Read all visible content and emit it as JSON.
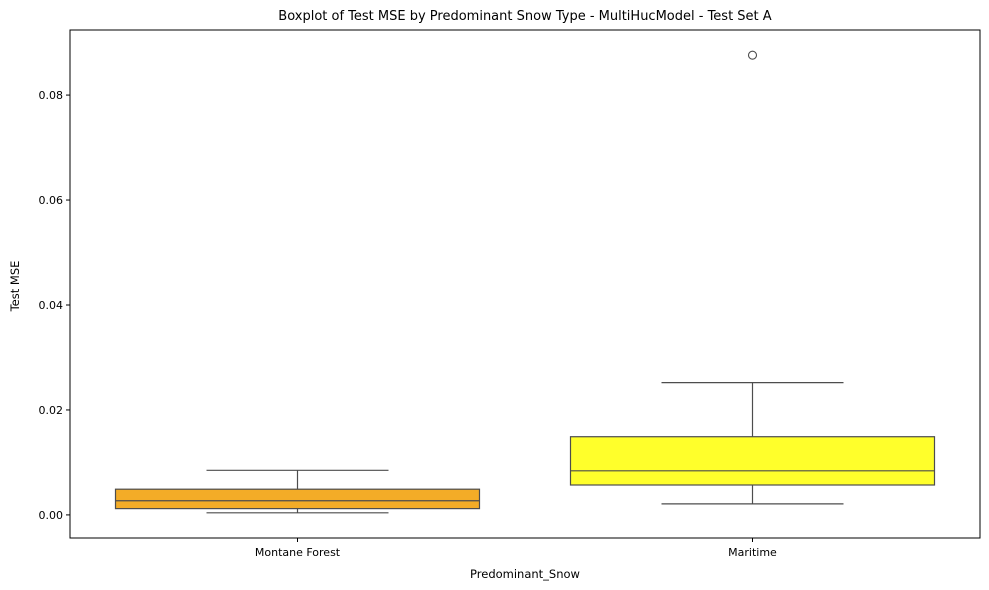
{
  "chart_data": {
    "type": "boxplot",
    "title": "Boxplot of Test MSE by Predominant Snow Type - MultiHucModel - Test Set A",
    "xlabel": "Predominant_Snow",
    "ylabel": "Test MSE",
    "ylim": [
      -0.0044,
      0.0924
    ],
    "yticks": [
      "0.00",
      "0.02",
      "0.04",
      "0.06",
      "0.08"
    ],
    "ytick_values": [
      0.0,
      0.02,
      0.04,
      0.06,
      0.08
    ],
    "grid": false,
    "categories": [
      "Montane Forest",
      "Maritime"
    ],
    "series": [
      {
        "category": "Montane Forest",
        "color": "#f2a30f",
        "whislo": 0.0004,
        "q1": 0.0012,
        "med": 0.0027,
        "q3": 0.0049,
        "whishi": 0.0085,
        "fliers": []
      },
      {
        "category": "Maritime",
        "color": "#ffff14",
        "whislo": 0.0021,
        "q1": 0.0057,
        "med": 0.0084,
        "q3": 0.0149,
        "whishi": 0.0252,
        "fliers": [
          0.0876
        ]
      }
    ]
  }
}
